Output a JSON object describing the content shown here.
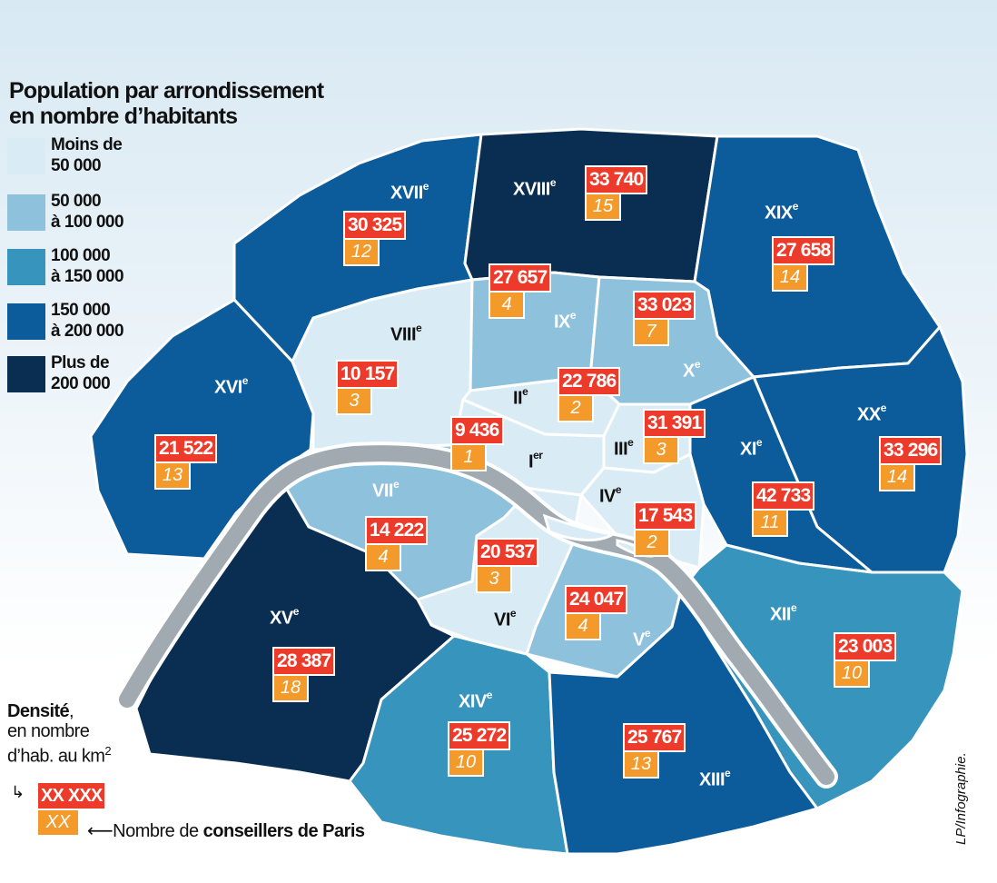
{
  "colors": {
    "c1": "#d9ecf5",
    "c2": "#8dc1dc",
    "c3": "#3794bd",
    "c4": "#0c5c9c",
    "c5": "#0a2e52",
    "river": "#a0aab0",
    "density_badge": "#ec3b2b",
    "councillors_badge": "#f39a2b"
  },
  "legend": {
    "title_line1": "Population par arrondissement",
    "title_line2": "en nombre d’habitants",
    "items": [
      {
        "line1": "Moins de",
        "line2": "50 000",
        "color": "#d9ecf5"
      },
      {
        "line1": "50 000",
        "line2": "à 100 000",
        "color": "#8dc1dc"
      },
      {
        "line1": "100 000",
        "line2": "à 150 000",
        "color": "#3794bd"
      },
      {
        "line1": "150 000",
        "line2": "à 200 000",
        "color": "#0c5c9c"
      },
      {
        "line1": "Plus de",
        "line2": "200 000",
        "color": "#0a2e52"
      }
    ]
  },
  "arrondissements": [
    {
      "num": "I",
      "sup": "er",
      "density": "9 436",
      "councillors": "1",
      "color": "#d9ecf5"
    },
    {
      "num": "II",
      "sup": "e",
      "density": "22 786",
      "councillors": "2",
      "color": "#d9ecf5"
    },
    {
      "num": "III",
      "sup": "e",
      "density": "31 391",
      "councillors": "3",
      "color": "#d9ecf5"
    },
    {
      "num": "IV",
      "sup": "e",
      "density": "17 543",
      "councillors": "2",
      "color": "#d9ecf5"
    },
    {
      "num": "V",
      "sup": "e",
      "density": "24 047",
      "councillors": "4",
      "color": "#8dc1dc"
    },
    {
      "num": "VI",
      "sup": "e",
      "density": "20 537",
      "councillors": "3",
      "color": "#d9ecf5"
    },
    {
      "num": "VII",
      "sup": "e",
      "density": "14 222",
      "councillors": "4",
      "color": "#8dc1dc"
    },
    {
      "num": "VIII",
      "sup": "e",
      "density": "10 157",
      "councillors": "3",
      "color": "#d9ecf5"
    },
    {
      "num": "IX",
      "sup": "e",
      "density": "27 657",
      "councillors": "4",
      "color": "#8dc1dc"
    },
    {
      "num": "X",
      "sup": "e",
      "density": "33 023",
      "councillors": "7",
      "color": "#8dc1dc"
    },
    {
      "num": "XI",
      "sup": "e",
      "density": "42 733",
      "councillors": "11",
      "color": "#0c5c9c"
    },
    {
      "num": "XII",
      "sup": "e",
      "density": "23 003",
      "councillors": "10",
      "color": "#3794bd"
    },
    {
      "num": "XIII",
      "sup": "e",
      "density": "25 767",
      "councillors": "13",
      "color": "#0c5c9c"
    },
    {
      "num": "XIV",
      "sup": "e",
      "density": "25 272",
      "councillors": "10",
      "color": "#3794bd"
    },
    {
      "num": "XV",
      "sup": "e",
      "density": "28 387",
      "councillors": "18",
      "color": "#0a2e52"
    },
    {
      "num": "XVI",
      "sup": "e",
      "density": "21 522",
      "councillors": "13",
      "color": "#0c5c9c"
    },
    {
      "num": "XVII",
      "sup": "e",
      "density": "30 325",
      "councillors": "12",
      "color": "#0c5c9c"
    },
    {
      "num": "XVIII",
      "sup": "e",
      "density": "33 740",
      "councillors": "15",
      "color": "#0a2e52"
    },
    {
      "num": "XIX",
      "sup": "e",
      "density": "27 658",
      "councillors": "14",
      "color": "#0c5c9c"
    },
    {
      "num": "XX",
      "sup": "e",
      "density": "33 296",
      "councillors": "14",
      "color": "#0c5c9c"
    }
  ],
  "density_legend": {
    "bold": "Densité",
    "comma": ",",
    "line2": "en nombre",
    "line3": "d’hab. au km",
    "sup": "2",
    "badge_density": "XX XXX",
    "badge_councillors": "XX",
    "conseillers_prefix": "Nombre de ",
    "conseillers_bold": "conseillers de Paris"
  },
  "credit": "LP/Infographie."
}
